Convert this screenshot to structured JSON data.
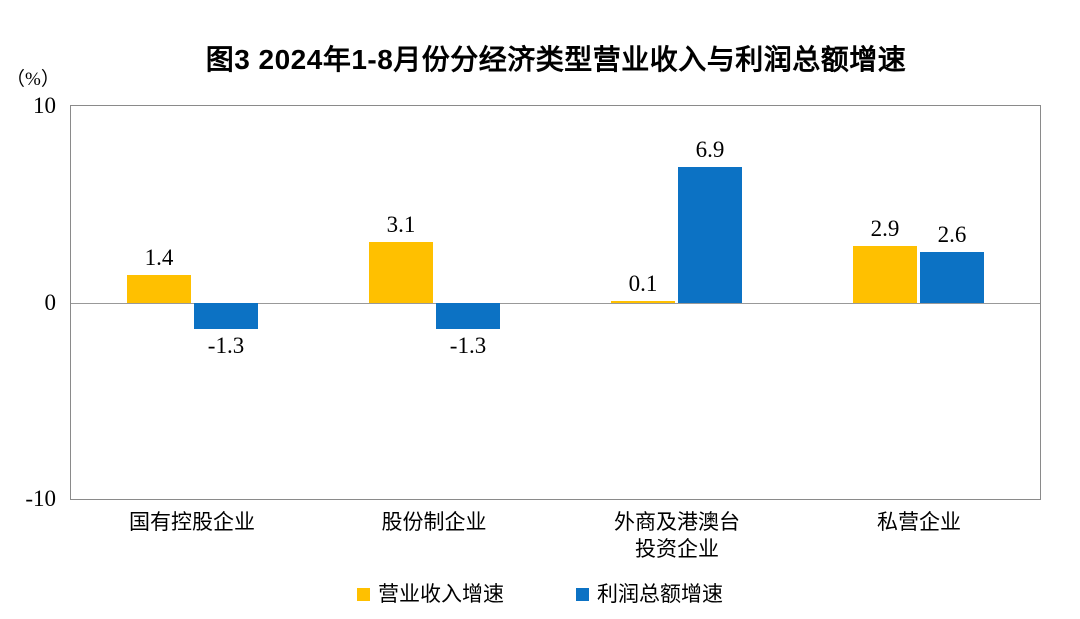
{
  "chart_data": {
    "type": "bar",
    "title": "图3 2024年1-8月份分经济类型营业收入与利润总额增速",
    "unit_label": "（%）",
    "categories": [
      "国有控股企业",
      "股份制企业",
      "外商及港澳台\n投资企业",
      "私营企业"
    ],
    "series": [
      {
        "name": "营业收入增速",
        "color": "#FFC000",
        "values": [
          1.4,
          3.1,
          0.1,
          2.9
        ]
      },
      {
        "name": "利润总额增速",
        "color": "#0C72C4",
        "values": [
          -1.3,
          -1.3,
          6.9,
          2.6
        ]
      }
    ],
    "ylim": [
      -10,
      10
    ],
    "yticks": [
      10,
      0,
      -10
    ],
    "value_label_decimals": 1,
    "legend_position": "bottom",
    "grid": false,
    "colors": {
      "axis_border": "#8a8a8a",
      "zero_line": "#999999",
      "text": "#000000",
      "background": "#ffffff"
    }
  }
}
